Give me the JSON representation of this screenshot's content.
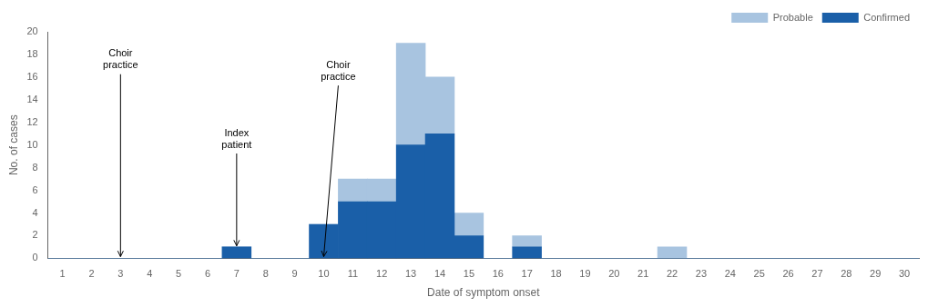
{
  "chart_data": {
    "type": "bar",
    "stacked": true,
    "x": [
      1,
      2,
      3,
      4,
      5,
      6,
      7,
      8,
      9,
      10,
      11,
      12,
      13,
      14,
      15,
      16,
      17,
      18,
      19,
      20,
      21,
      22,
      23,
      24,
      25,
      26,
      27,
      28,
      29,
      30
    ],
    "series": [
      {
        "name": "Confirmed",
        "color": "#1a5fa8",
        "values": [
          0,
          0,
          0,
          0,
          0,
          0,
          1,
          0,
          0,
          3,
          5,
          5,
          10,
          11,
          2,
          0,
          1,
          0,
          0,
          0,
          0,
          0,
          0,
          0,
          0,
          0,
          0,
          0,
          0,
          0
        ]
      },
      {
        "name": "Probable",
        "color": "#a8c4e0",
        "values": [
          0,
          0,
          0,
          0,
          0,
          0,
          0,
          0,
          0,
          0,
          2,
          2,
          9,
          5,
          2,
          0,
          1,
          0,
          0,
          0,
          0,
          1,
          0,
          0,
          0,
          0,
          0,
          0,
          0,
          0
        ]
      }
    ],
    "xlim": [
      0.5,
      30.5
    ],
    "xticks": [
      1,
      2,
      3,
      4,
      5,
      6,
      7,
      8,
      9,
      10,
      11,
      12,
      13,
      14,
      15,
      16,
      17,
      18,
      19,
      20,
      21,
      22,
      23,
      24,
      25,
      26,
      27,
      28,
      29,
      30
    ],
    "ylim": [
      0,
      20
    ],
    "yticks": [
      0,
      2,
      4,
      6,
      8,
      10,
      12,
      14,
      16,
      18,
      20
    ],
    "xlabel": "Date of symptom onset",
    "ylabel": "No. of cases",
    "legend": "upper right",
    "grid": false,
    "annotations": [
      {
        "text": "Choir\npractice",
        "x": 3.0,
        "y": 0.15,
        "text_x": 3.0,
        "text_y": 18.5
      },
      {
        "text": "Index\npatient",
        "x": 7.0,
        "y": 1.1,
        "text_x": 7.0,
        "text_y": 11.5
      },
      {
        "text": "Choir\npractice",
        "x": 10.0,
        "y": 0.15,
        "text_x": 10.5,
        "text_y": 17.5
      }
    ]
  }
}
